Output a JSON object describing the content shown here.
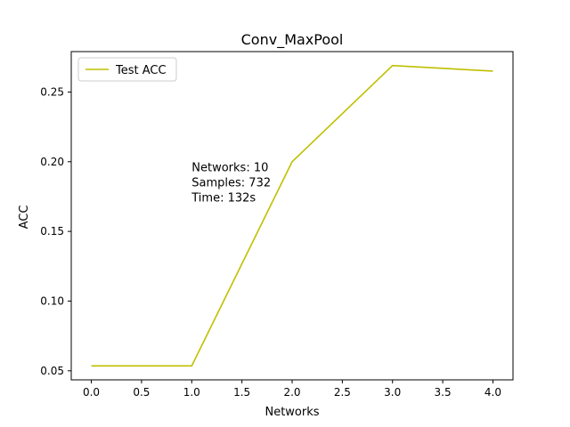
{
  "chart_data": {
    "type": "line",
    "title": "Conv_MaxPool",
    "xlabel": "Networks",
    "ylabel": "ACC",
    "x": [
      0,
      1,
      2,
      3,
      4
    ],
    "series": [
      {
        "name": "Test ACC",
        "color": "#bfbf00",
        "values": [
          0.0535,
          0.0535,
          0.2,
          0.269,
          0.265
        ]
      }
    ],
    "xlim": [
      -0.2,
      4.2
    ],
    "ylim": [
      0.0435,
      0.279
    ],
    "xticks": [
      {
        "value": 0,
        "label": "0.0"
      },
      {
        "value": 0.5,
        "label": "0.5"
      },
      {
        "value": 1,
        "label": "1.0"
      },
      {
        "value": 1.5,
        "label": "1.5"
      },
      {
        "value": 2,
        "label": "2.0"
      },
      {
        "value": 2.5,
        "label": "2.5"
      },
      {
        "value": 3,
        "label": "3.0"
      },
      {
        "value": 3.5,
        "label": "3.5"
      },
      {
        "value": 4,
        "label": "4.0"
      }
    ],
    "yticks": [
      {
        "value": 0.05,
        "label": "0.05"
      },
      {
        "value": 0.1,
        "label": "0.10"
      },
      {
        "value": 0.15,
        "label": "0.15"
      },
      {
        "value": 0.2,
        "label": "0.20"
      },
      {
        "value": 0.25,
        "label": "0.25"
      }
    ],
    "grid": false,
    "legend": "top-left",
    "annotation": {
      "x": 1.0,
      "y": 0.185,
      "lines": [
        "Networks: 10",
        "Samples: 732",
        "Time: 132s"
      ]
    }
  }
}
